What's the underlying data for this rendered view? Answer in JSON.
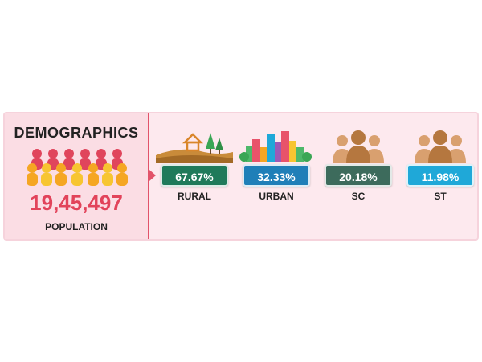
{
  "title": "DEMOGRAPHICS",
  "population": {
    "value": "19,45,497",
    "label": "POPULATION"
  },
  "stats": [
    {
      "label": "RURAL",
      "value": "67.67%",
      "color": "#1f7a5a",
      "icon": "rural-landscape-icon"
    },
    {
      "label": "URBAN",
      "value": "32.33%",
      "color": "#1f7fb8",
      "icon": "city-buildings-icon"
    },
    {
      "label": "SC",
      "value": "20.18%",
      "color": "#3d6b5c",
      "icon": "people-group-icon"
    },
    {
      "label": "ST",
      "value": "11.98%",
      "color": "#1fa8d8",
      "icon": "people-group-icon"
    }
  ]
}
